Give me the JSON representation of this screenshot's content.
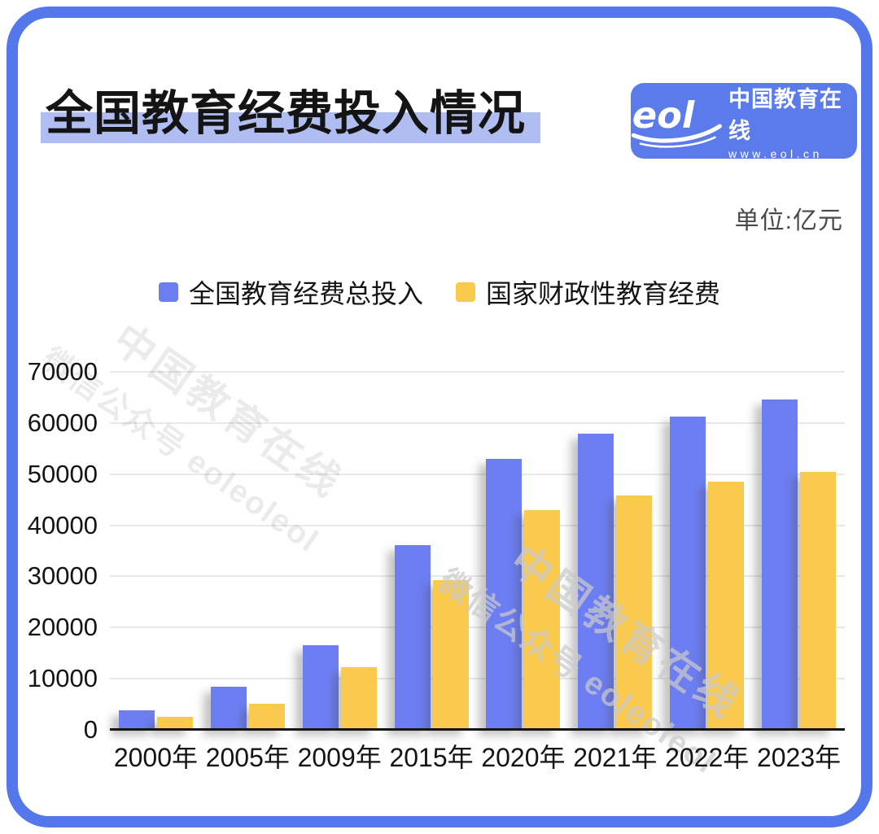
{
  "title": "全国教育经费投入情况",
  "logo": {
    "brand": "eol",
    "name": "中国教育在线",
    "url": "www.eol.cn"
  },
  "unit_label": "单位:亿元",
  "watermark": {
    "line1": "中国教育在线",
    "line2": "微信公众号 eoleoleol"
  },
  "colors": {
    "frame": "#5577EC",
    "logo_bg": "#5B7BEA",
    "title_highlight": "#AFBDF0",
    "bar_blue": "#6D7EF2",
    "bar_yellow": "#FACA4F"
  },
  "chart_data": {
    "type": "bar",
    "categories": [
      "2000年",
      "2005年",
      "2009年",
      "2015年",
      "2020年",
      "2021年",
      "2022年",
      "2023年"
    ],
    "series": [
      {
        "name": "全国教育经费总投入",
        "color": "#6D7EF2",
        "values": [
          3849,
          8419,
          16503,
          36129,
          53034,
          57874,
          61329,
          64595
        ]
      },
      {
        "name": "国家财政性教育经费",
        "color": "#FACA4F",
        "values": [
          2563,
          5161,
          12231,
          29221,
          42908,
          45835,
          48473,
          50433
        ]
      }
    ],
    "title": "全国教育经费投入情况",
    "xlabel": "",
    "ylabel": "单位:亿元",
    "ylim": [
      0,
      70000
    ],
    "yticks": [
      0,
      10000,
      20000,
      30000,
      40000,
      50000,
      60000,
      70000
    ],
    "grid": true,
    "legend_position": "top"
  }
}
